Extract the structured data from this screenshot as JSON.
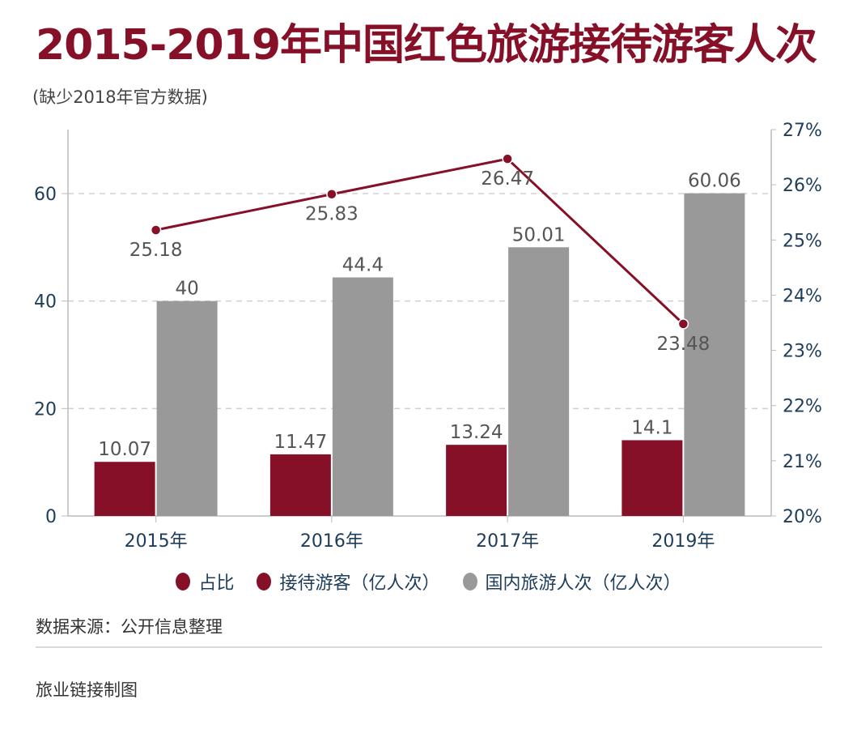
{
  "header": {
    "title": "2015-2019年中国红色旅游接待游客人次",
    "subtitle": "(缺少2018年官方数据)"
  },
  "chart_data": {
    "type": "bar",
    "title": "2015-2019年中国红色旅游接待游客人次",
    "subtitle": "(缺少2018年官方数据)",
    "categories": [
      "2015年",
      "2016年",
      "2017年",
      "2019年"
    ],
    "series": [
      {
        "name": "接待游客（亿人次）",
        "type": "bar",
        "axis": "left",
        "color": "#861027",
        "values": [
          10.07,
          11.47,
          13.24,
          14.1
        ],
        "labels": [
          "10.07",
          "11.47",
          "13.24",
          "14.1"
        ]
      },
      {
        "name": "国内旅游人次（亿人次）",
        "type": "bar",
        "axis": "left",
        "color": "#999999",
        "values": [
          40,
          44.4,
          50.01,
          60.06
        ],
        "labels": [
          "40",
          "44.4",
          "50.01",
          "60.06"
        ]
      },
      {
        "name": "占比",
        "type": "line",
        "axis": "right",
        "color": "#861027",
        "values": [
          25.18,
          25.83,
          26.47,
          23.48
        ],
        "labels": [
          "25.18",
          "25.83",
          "26.47",
          "23.48"
        ]
      }
    ],
    "left_axis": {
      "min": 0,
      "max": 70,
      "ticks": [
        0,
        20,
        40,
        60
      ],
      "tick_labels": [
        "0",
        "20",
        "40",
        "60"
      ]
    },
    "right_axis": {
      "min": 20,
      "max": 27,
      "ticks": [
        20,
        21,
        22,
        23,
        24,
        25,
        26,
        27
      ],
      "tick_labels": [
        "20%",
        "21%",
        "22%",
        "23%",
        "24%",
        "25%",
        "26%",
        "27%"
      ]
    },
    "grid": true,
    "legend_position": "bottom-center",
    "xlabel": "",
    "ylabel": ""
  },
  "legend": [
    {
      "label": "占比",
      "color": "#861027"
    },
    {
      "label": "接待游客（亿人次）",
      "color": "#861027"
    },
    {
      "label": "国内旅游人次（亿人次）",
      "color": "#999999"
    }
  ],
  "footer": {
    "source": "数据来源：公开信息整理",
    "credit": "旅业链接制图"
  }
}
